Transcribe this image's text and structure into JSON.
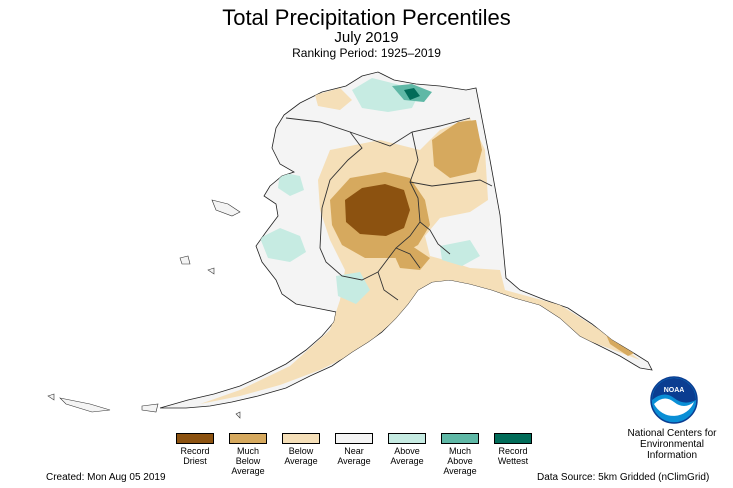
{
  "header": {
    "title": "Total Precipitation Percentiles",
    "subtitle": "July 2019",
    "ranking": "Ranking Period: 1925–2019"
  },
  "legend": [
    {
      "line1": "Record",
      "line2": "Driest",
      "line3": "",
      "color": "#8c5210"
    },
    {
      "line1": "Much",
      "line2": "Below",
      "line3": "Average",
      "color": "#d6a95e"
    },
    {
      "line1": "Below",
      "line2": "Average",
      "line3": "",
      "color": "#f5dfb8"
    },
    {
      "line1": "Near",
      "line2": "Average",
      "line3": "",
      "color": "#f4f4f4"
    },
    {
      "line1": "Above",
      "line2": "Average",
      "line3": "",
      "color": "#c6ebe2"
    },
    {
      "line1": "Much",
      "line2": "Above",
      "line3": "Average",
      "color": "#5fb8a6"
    },
    {
      "line1": "Record",
      "line2": "Wettest",
      "line3": "",
      "color": "#016c59"
    }
  ],
  "footer": {
    "created": "Created: Mon Aug 05 2019",
    "source": "Data Source: 5km Gridded (nClimGrid)"
  },
  "branding": {
    "logo_text": "NOAA",
    "org_line1": "National Centers for",
    "org_line2": "Environmental",
    "org_line3": "Information"
  },
  "colors": {
    "record_driest": "#8c5210",
    "much_below": "#d6a95e",
    "below": "#f5dfb8",
    "near": "#f4f4f4",
    "above": "#c6ebe2",
    "much_above": "#5fb8a6",
    "record_wettest": "#016c59",
    "noaa_blue": "#0a8fd6"
  }
}
